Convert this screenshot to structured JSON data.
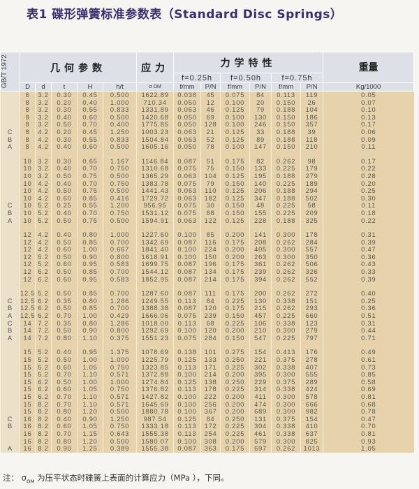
{
  "title": "表1  碟形弹簧标准参数表（Standard Disc Springs）",
  "header": {
    "standard": "GB/T 1972",
    "geometry": "几何参数",
    "stress": "应力",
    "mechanical": "力学特性",
    "weight": "重量",
    "f1": "f=0.25h",
    "f2": "f=0.50h",
    "f3": "f=0.75h",
    "columns": [
      "D",
      "d",
      "t",
      "H",
      "h/t",
      "σ OM",
      "f/mm",
      "P/N",
      "f/mm",
      "P/N",
      "f/mm",
      "P/N",
      "Kg/1000"
    ]
  },
  "table": {
    "groups": [
      {
        "rows": [
          [
            "",
            "6",
            "3.2",
            "0.30",
            "0.45",
            "0.500",
            "1622.89",
            "0.038",
            "45",
            "0.075",
            "84",
            "0.113",
            "119",
            "0.05"
          ],
          [
            "",
            "8",
            "3.2",
            "0.20",
            "0.40",
            "1.000",
            "710.34",
            "0.050",
            "12",
            "0.100",
            "20",
            "0.150",
            "26",
            "0.07"
          ],
          [
            "",
            "8",
            "3.2",
            "0.30",
            "0.55",
            "0.833",
            "1331.89",
            "0.063",
            "46",
            "0.125",
            "79",
            "0.188",
            "104",
            "0.10"
          ],
          [
            "",
            "8",
            "3.2",
            "0.40",
            "0.60",
            "0.500",
            "1420.68",
            "0.050",
            "69",
            "0.100",
            "130",
            "0.150",
            "186",
            "0.13"
          ],
          [
            "",
            "8",
            "3.2",
            "0.50",
            "0.70",
            "0.400",
            "1775.85",
            "0.050",
            "128",
            "0.100",
            "246",
            "0.150",
            "357",
            "0.17"
          ],
          [
            "C",
            "8",
            "4.2",
            "0.20",
            "0.45",
            "1.250",
            "1003.23",
            "0.063",
            "21",
            "0.125",
            "33",
            "0.188",
            "39",
            "0.06"
          ],
          [
            "B",
            "8",
            "4.2",
            "0.30",
            "0.55",
            "0.833",
            "1504.84",
            "0.063",
            "52",
            "0.125",
            "89",
            "0.188",
            "118",
            "0.09"
          ],
          [
            "A",
            "8",
            "4.2",
            "0.40",
            "0.60",
            "0.500",
            "1605.16",
            "0.050",
            "78",
            "0.100",
            "147",
            "0.150",
            "210",
            "0.11"
          ]
        ]
      },
      {
        "rows": [
          [
            "",
            "10",
            "3.2",
            "0.30",
            "0.65",
            "1.167",
            "1146.84",
            "0.087",
            "51",
            "0.175",
            "82",
            "0.262",
            "98",
            "0.17"
          ],
          [
            "",
            "10",
            "3.2",
            "0.40",
            "0.70",
            "0.750",
            "1310.68",
            "0.075",
            "75",
            "0.150",
            "133",
            "0.225",
            "179",
            "0.22"
          ],
          [
            "",
            "10",
            "3.2",
            "0.50",
            "0.75",
            "0.500",
            "1365.29",
            "0.063",
            "104",
            "0.125",
            "195",
            "0.188",
            "279",
            "0.28"
          ],
          [
            "",
            "10",
            "4.2",
            "0.40",
            "0.70",
            "0.750",
            "1383.78",
            "0.075",
            "79",
            "0.150",
            "140",
            "0.225",
            "189",
            "0.20"
          ],
          [
            "",
            "10",
            "4.2",
            "0.50",
            "0.75",
            "0.500",
            "1441.43",
            "0.063",
            "110",
            "0.125",
            "206",
            "0.188",
            "294",
            "0.25"
          ],
          [
            "",
            "10",
            "4.2",
            "0.60",
            "0.85",
            "0.416",
            "1729.72",
            "0.063",
            "182",
            "0.125",
            "347",
            "0.188",
            "502",
            "0.30"
          ],
          [
            "C",
            "10",
            "5.2",
            "0.25",
            "0.55",
            "1.200",
            "956.95",
            "0.075",
            "30",
            "0.150",
            "48",
            "0.225",
            "58",
            "0.11"
          ],
          [
            "B",
            "10",
            "5.2",
            "0.40",
            "0.70",
            "0.750",
            "1531.12",
            "0.075",
            "88",
            "0.150",
            "155",
            "0.225",
            "209",
            "0.18"
          ],
          [
            "A",
            "10",
            "5.2",
            "0.50",
            "0.75",
            "0.500",
            "1594.91",
            "0.063",
            "122",
            "0.125",
            "228",
            "0.188",
            "325",
            "0.22"
          ]
        ]
      },
      {
        "rows": [
          [
            "",
            "12",
            "4.2",
            "0.40",
            "0.80",
            "1.000",
            "1227.60",
            "0.100",
            "85",
            "0.200",
            "141",
            "0.300",
            "178",
            "0.31"
          ],
          [
            "",
            "12",
            "4.2",
            "0.50",
            "0.85",
            "0.700",
            "1342.69",
            "0.087",
            "116",
            "0.175",
            "208",
            "0.262",
            "284",
            "0.39"
          ],
          [
            "",
            "12",
            "4.2",
            "0.60",
            "1.00",
            "0.667",
            "1841.40",
            "0.100",
            "224",
            "0.200",
            "405",
            "0.300",
            "557",
            "0.47"
          ],
          [
            "",
            "12",
            "5.2",
            "0.50",
            "0.90",
            "0.800",
            "1618.91",
            "0.100",
            "150",
            "0.200",
            "263",
            "0.300",
            "350",
            "0.36"
          ],
          [
            "",
            "12",
            "5.2",
            "0.60",
            "0.95",
            "0.583",
            "1699.75",
            "0.087",
            "196",
            "0.175",
            "361",
            "0.262",
            "506",
            "0.43"
          ],
          [
            "",
            "12",
            "6.2",
            "0.50",
            "0.85",
            "0.700",
            "1544.12",
            "0.087",
            "134",
            "0.175",
            "239",
            "0.262",
            "326",
            "0.33"
          ],
          [
            "",
            "12",
            "6.2",
            "0.60",
            "0.95",
            "0.583",
            "1852.95",
            "0.087",
            "214",
            "0.175",
            "394",
            "0.262",
            "552",
            "0.39"
          ]
        ]
      },
      {
        "rows": [
          [
            "",
            "12.5",
            "5.2",
            "0.50",
            "0.85",
            "0.700",
            "1287.60",
            "0.087",
            "111",
            "0.175",
            "200",
            "0.262",
            "272",
            "0.40"
          ],
          [
            "C",
            "12.5",
            "6.2",
            "0.35",
            "0.80",
            "1.286",
            "1249.55",
            "0.113",
            "84",
            "0.225",
            "130",
            "0.338",
            "151",
            "0.25"
          ],
          [
            "B",
            "12.5",
            "6.2",
            "0.50",
            "0.85",
            "0.700",
            "1388.38",
            "0.087",
            "120",
            "0.175",
            "215",
            "0.262",
            "293",
            "0.36"
          ],
          [
            "A",
            "12.5",
            "6.2",
            "0.70",
            "1.00",
            "0.429",
            "1666.06",
            "0.075",
            "239",
            "0.150",
            "457",
            "0.225",
            "660",
            "0.51"
          ],
          [
            "C",
            "14",
            "7.2",
            "0.35",
            "0.80",
            "1.286",
            "1018.00",
            "0.113",
            "68",
            "0.225",
            "106",
            "0.338",
            "123",
            "0.31"
          ],
          [
            "B",
            "14",
            "7.2",
            "0.50",
            "0.90",
            "0.800",
            "1292.69",
            "0.100",
            "120",
            "0.200",
            "210",
            "0.300",
            "279",
            "0.44"
          ],
          [
            "A",
            "14",
            "7.2",
            "0.80",
            "1.10",
            "0.375",
            "1551.23",
            "0.075",
            "284",
            "0.150",
            "547",
            "0.225",
            "797",
            "0.71"
          ]
        ]
      },
      {
        "rows": [
          [
            "",
            "15",
            "5.2",
            "0.40",
            "0.95",
            "1.375",
            "1078.69",
            "0.138",
            "101",
            "0.275",
            "154",
            "0.413",
            "176",
            "0.49"
          ],
          [
            "",
            "15",
            "5.2",
            "0.50",
            "1.00",
            "1.000",
            "1225.79",
            "0.125",
            "133",
            "0.250",
            "221",
            "0.375",
            "278",
            "0.61"
          ],
          [
            "",
            "15",
            "5.2",
            "0.60",
            "1.05",
            "0.750",
            "1323.85",
            "0.113",
            "171",
            "0.225",
            "302",
            "0.338",
            "407",
            "0.73"
          ],
          [
            "",
            "15",
            "5.2",
            "0.70",
            "1.10",
            "0.571",
            "1372.88",
            "0.100",
            "214",
            "0.200",
            "395",
            "0.300",
            "555",
            "0.85"
          ],
          [
            "",
            "15",
            "6.2",
            "0.50",
            "1.00",
            "1.000",
            "1274.84",
            "0.125",
            "138",
            "0.250",
            "229",
            "0.375",
            "289",
            "0.58"
          ],
          [
            "",
            "15",
            "6.2",
            "0.60",
            "1.05",
            "0.750",
            "1376.82",
            "0.113",
            "178",
            "0.225",
            "314",
            "0.338",
            "424",
            "0.69"
          ],
          [
            "",
            "15",
            "6.2",
            "0.70",
            "1.10",
            "0.571",
            "1427.82",
            "0.100",
            "222",
            "0.200",
            "411",
            "0.300",
            "578",
            "0.81"
          ],
          [
            "",
            "15",
            "8.2",
            "0.70",
            "1.10",
            "0.571",
            "1645.69",
            "0.100",
            "256",
            "0.200",
            "474",
            "0.300",
            "666",
            "0.68"
          ],
          [
            "",
            "15",
            "8.2",
            "0.80",
            "1.20",
            "0.500",
            "1880.78",
            "0.100",
            "367",
            "0.200",
            "689",
            "0.300",
            "982",
            "0.78"
          ],
          [
            "C",
            "16",
            "8.2",
            "0.40",
            "0.90",
            "1.250",
            "987.54",
            "0.125",
            "84",
            "0.250",
            "131",
            "0.375",
            "154",
            "0.47"
          ],
          [
            "B",
            "16",
            "8.2",
            "0.60",
            "1.05",
            "0.750",
            "1333.18",
            "0.113",
            "172",
            "0.225",
            "304",
            "0.338",
            "410",
            "0.70"
          ],
          [
            "",
            "16",
            "8.2",
            "0.70",
            "1.15",
            "0.643",
            "1555.38",
            "0.113",
            "254",
            "0.225",
            "461",
            "0.338",
            "637",
            "0.81"
          ],
          [
            "",
            "16",
            "8.2",
            "0.80",
            "1.20",
            "0.500",
            "1580.07",
            "0.100",
            "308",
            "0.200",
            "579",
            "0.300",
            "825",
            "0.93"
          ],
          [
            "A",
            "16",
            "8.2",
            "0.90",
            "1.25",
            "0.389",
            "1555.38",
            "0.087",
            "363",
            "0.175",
            "697",
            "0.262",
            "1013",
            "1.05"
          ]
        ]
      }
    ]
  },
  "note": {
    "prefix": "注：",
    "symbol": "σ",
    "subscript": "OM",
    "text": "为压平状态时碟簧上表面的计算应力（MPa ），下同。"
  },
  "colors": {
    "title": "#3b2d6e",
    "cell": "#e6d3ab",
    "header": "#dde0e6"
  }
}
